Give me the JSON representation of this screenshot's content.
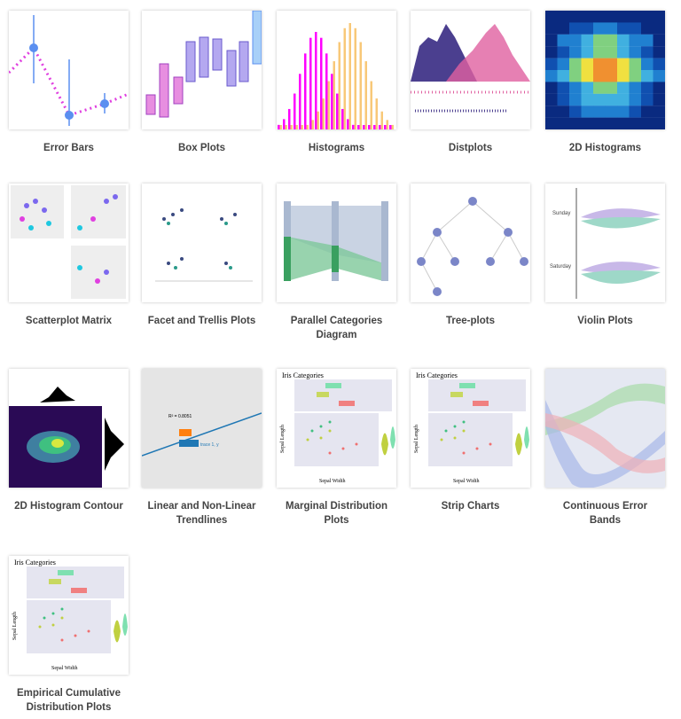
{
  "gallery": {
    "items": [
      {
        "label": "Error Bars",
        "icon": "error-bars-thumbnail"
      },
      {
        "label": "Box Plots",
        "icon": "box-plots-thumbnail"
      },
      {
        "label": "Histograms",
        "icon": "histograms-thumbnail"
      },
      {
        "label": "Distplots",
        "icon": "distplots-thumbnail"
      },
      {
        "label": "2D Histograms",
        "icon": "2d-histograms-thumbnail"
      },
      {
        "label": "Scatterplot Matrix",
        "icon": "scatterplot-matrix-thumbnail"
      },
      {
        "label": "Facet and Trellis Plots",
        "icon": "facet-trellis-thumbnail"
      },
      {
        "label": "Parallel Categories Diagram",
        "icon": "parallel-categories-thumbnail"
      },
      {
        "label": "Tree-plots",
        "icon": "tree-plots-thumbnail"
      },
      {
        "label": "Violin Plots",
        "icon": "violin-plots-thumbnail"
      },
      {
        "label": "2D Histogram Contour",
        "icon": "2d-histogram-contour-thumbnail"
      },
      {
        "label": "Linear and Non-Linear Trendlines",
        "icon": "trendlines-thumbnail"
      },
      {
        "label": "Marginal Distribution Plots",
        "icon": "marginal-distribution-thumbnail"
      },
      {
        "label": "Strip Charts",
        "icon": "strip-charts-thumbnail"
      },
      {
        "label": "Continuous Error Bands",
        "icon": "error-bands-thumbnail"
      },
      {
        "label": "Empirical Cumulative Distribution Plots",
        "icon": "ecdf-thumbnail"
      }
    ],
    "thumb_text": {
      "iris": "Iris Categories",
      "sepal_length": "Sepal Length",
      "sepal_width": "Sepal Width",
      "sunday": "Sunday",
      "saturday": "Saturday",
      "trace": "trace 1, y"
    },
    "colors": {
      "blue": "#5b8ff0",
      "magenta": "#e040e0",
      "purple": "#7b68ee",
      "pink": "#e57ab0",
      "teal": "#7fd3b8",
      "green": "#4caf50"
    }
  }
}
